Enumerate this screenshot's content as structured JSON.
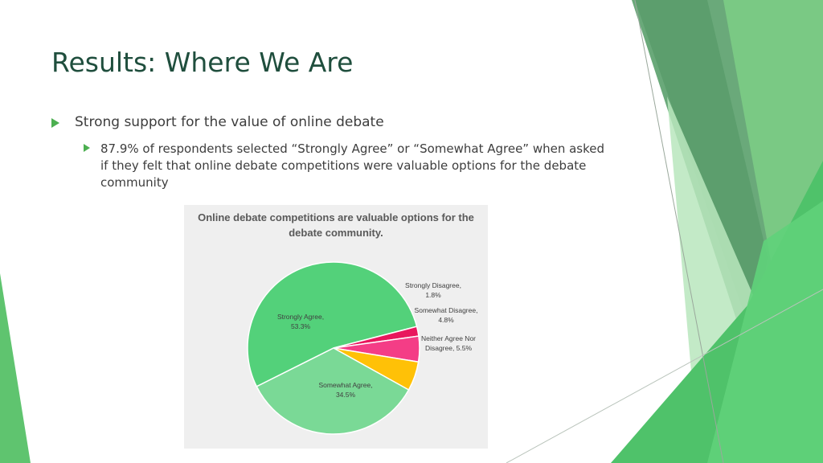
{
  "slide": {
    "title": "Results: Where We Are",
    "bullet1": "Strong support for the value of online debate",
    "bullet2": "87.9% of respondents selected “Strongly Agree” or “Somewhat Agree” when asked if they felt that online debate competitions were valuable options for the debate community",
    "accent_color": "#4caf50",
    "title_color": "#1f4e3d"
  },
  "chart_data": {
    "type": "pie",
    "title": "Online debate competitions are valuable options for the debate community.",
    "slices": [
      {
        "name": "Strongly Agree",
        "value": 53.3,
        "color": "#53d17a",
        "label_lines": [
          "Strongly Agree,",
          "53.3%"
        ]
      },
      {
        "name": "Strongly Disagree",
        "value": 1.8,
        "color": "#e8175d",
        "label_lines": [
          "Strongly Disagree,",
          "1.8%"
        ]
      },
      {
        "name": "Somewhat Disagree",
        "value": 4.8,
        "color": "#f43d86",
        "label_lines": [
          "Somewhat Disagree,",
          "4.8%"
        ]
      },
      {
        "name": "Neither Agree Nor Disagree",
        "value": 5.5,
        "color": "#ffc107",
        "label_lines": [
          "Neither Agree Nor",
          "Disagree, 5.5%"
        ]
      },
      {
        "name": "Somewhat Agree",
        "value": 34.5,
        "color": "#7ad996",
        "label_lines": [
          "Somewhat Agree,",
          "34.5%"
        ]
      }
    ]
  }
}
